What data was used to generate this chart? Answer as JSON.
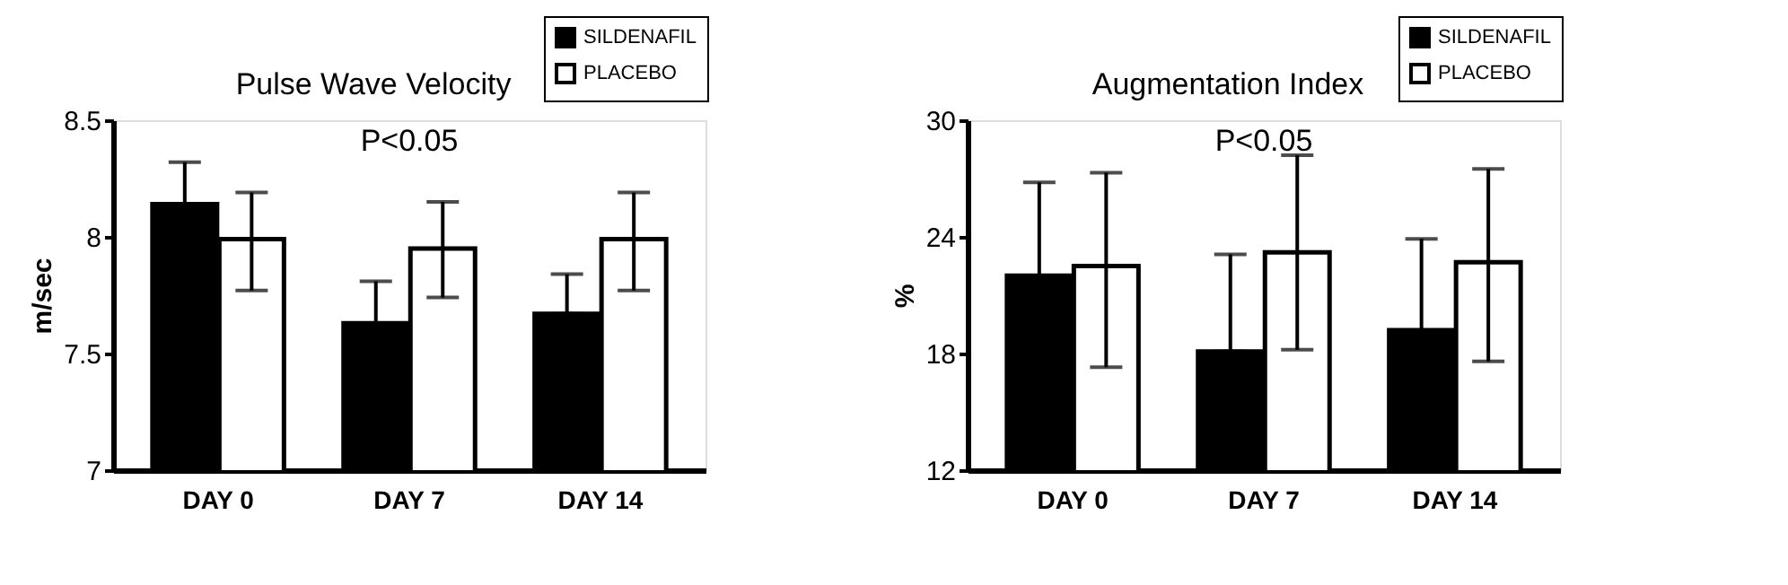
{
  "chart_data": [
    {
      "type": "bar",
      "title": "Pulse Wave Velocity",
      "ylabel": "m/sec",
      "categories": [
        "DAY 0",
        "DAY 7",
        "DAY 14"
      ],
      "series": [
        {
          "name": "SILDENAFIL",
          "color": "#000000",
          "values": [
            8.14,
            7.63,
            7.67
          ],
          "errors": [
            [
              8.14,
              8.32
            ],
            [
              7.63,
              7.81
            ],
            [
              7.67,
              7.84
            ]
          ]
        },
        {
          "name": "PLACEBO",
          "color": "#ffffff",
          "values": [
            7.99,
            7.95,
            7.99
          ],
          "errors": [
            [
              7.77,
              8.19
            ],
            [
              7.74,
              8.15
            ],
            [
              7.77,
              8.19
            ]
          ]
        }
      ],
      "ylim": [
        7,
        8.5
      ],
      "yticks": [
        7,
        7.5,
        8,
        8.5
      ],
      "grid": false,
      "legend": "top right",
      "annotations": [
        "P<0.05"
      ]
    },
    {
      "type": "bar",
      "title": "Augmentation Index",
      "ylabel": "%",
      "categories": [
        "DAY 0",
        "DAY 7",
        "DAY 14"
      ],
      "series": [
        {
          "name": "SILDENAFIL",
          "color": "#000000",
          "values": [
            22.0,
            18.1,
            19.2
          ],
          "errors": [
            [
              22.0,
              26.8
            ],
            [
              18.1,
              23.1
            ],
            [
              19.2,
              23.9
            ]
          ]
        },
        {
          "name": "PLACEBO",
          "color": "#ffffff",
          "values": [
            22.5,
            23.2,
            22.7
          ],
          "errors": [
            [
              17.3,
              27.3
            ],
            [
              18.2,
              28.2
            ],
            [
              17.6,
              27.5
            ]
          ]
        }
      ],
      "ylim": [
        12,
        30
      ],
      "yticks": [
        12,
        18,
        24,
        30
      ],
      "grid": false,
      "legend": "top right",
      "annotations": [
        "P<0.05"
      ]
    }
  ]
}
